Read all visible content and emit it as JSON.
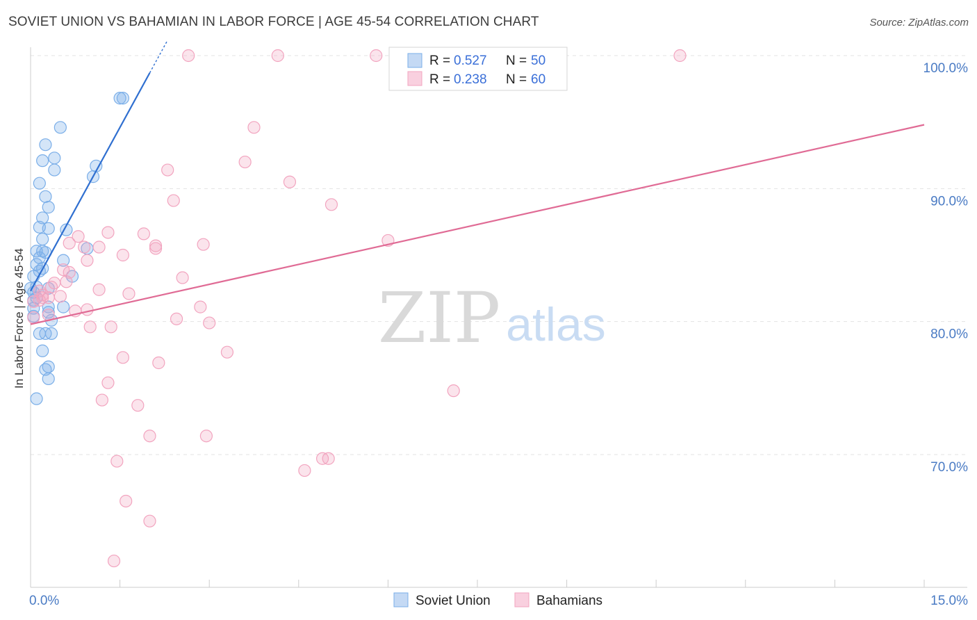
{
  "title": "SOVIET UNION VS BAHAMIAN IN LABOR FORCE | AGE 45-54 CORRELATION CHART",
  "source": "Source: ZipAtlas.com",
  "watermark": {
    "zip": "ZIP",
    "atlas": "atlas"
  },
  "colors": {
    "blue": "#7aaee8",
    "blue_line": "#2f6fd0",
    "pink": "#f2a4bf",
    "pink_line": "#e06b95",
    "tick": "#4a7bc4"
  },
  "chart_data": {
    "type": "scatter",
    "ylabel": "In Labor Force | Age 45-54",
    "xlim": [
      0,
      15
    ],
    "ylim": [
      61.5,
      102
    ],
    "x_ticks_labeled": [
      {
        "value": 0,
        "label": "0.0%"
      },
      {
        "value": 15,
        "label": "15.0%"
      }
    ],
    "x_ticks_minor": [
      1.5,
      3,
      4.5,
      6,
      7.5,
      9,
      10.5,
      12,
      13.5,
      15
    ],
    "y_ticks": [
      {
        "value": 70,
        "label": "70.0%"
      },
      {
        "value": 80,
        "label": "80.0%"
      },
      {
        "value": 90,
        "label": "90.0%"
      },
      {
        "value": 100,
        "label": "100.0%"
      }
    ],
    "grid": "horizontal dashed",
    "legend_position": "top-center",
    "series": [
      {
        "name": "Soviet Union",
        "R": "0.527",
        "N": "50",
        "color": "#7aaee8",
        "trend": {
          "x0": 0.0,
          "y0": 82.3,
          "x1": 2.0,
          "y1": 98.7
        },
        "points": [
          [
            1.5,
            96.8
          ],
          [
            1.55,
            96.8
          ],
          [
            0.5,
            94.6
          ],
          [
            0.25,
            93.3
          ],
          [
            0.4,
            92.3
          ],
          [
            0.2,
            92.1
          ],
          [
            1.1,
            91.7
          ],
          [
            0.4,
            91.4
          ],
          [
            1.05,
            90.9
          ],
          [
            0.15,
            90.4
          ],
          [
            0.25,
            89.4
          ],
          [
            0.3,
            88.6
          ],
          [
            0.2,
            87.8
          ],
          [
            0.15,
            87.1
          ],
          [
            0.3,
            87.0
          ],
          [
            0.6,
            86.9
          ],
          [
            0.2,
            86.2
          ],
          [
            0.95,
            85.5
          ],
          [
            0.2,
            85.3
          ],
          [
            0.25,
            85.2
          ],
          [
            0.1,
            85.3
          ],
          [
            0.15,
            84.8
          ],
          [
            0.55,
            84.6
          ],
          [
            0.1,
            84.3
          ],
          [
            0.2,
            84.0
          ],
          [
            0.15,
            83.8
          ],
          [
            0.05,
            83.4
          ],
          [
            0.7,
            83.4
          ],
          [
            0.1,
            82.6
          ],
          [
            0.0,
            82.5
          ],
          [
            0.3,
            82.5
          ],
          [
            0.05,
            82.2
          ],
          [
            0.1,
            81.8
          ],
          [
            0.05,
            81.6
          ],
          [
            0.55,
            81.1
          ],
          [
            0.3,
            81.1
          ],
          [
            0.05,
            81.0
          ],
          [
            0.3,
            80.7
          ],
          [
            0.05,
            80.4
          ],
          [
            0.35,
            80.1
          ],
          [
            0.15,
            79.1
          ],
          [
            0.25,
            79.1
          ],
          [
            0.35,
            79.1
          ],
          [
            0.2,
            77.8
          ],
          [
            0.3,
            76.6
          ],
          [
            0.25,
            76.4
          ],
          [
            0.3,
            75.7
          ],
          [
            0.1,
            74.2
          ]
        ]
      },
      {
        "name": "Bahamians",
        "R": "0.238",
        "N": "60",
        "color": "#f2a4bf",
        "trend": {
          "x0": 0.0,
          "y0": 79.8,
          "x1": 15.0,
          "y1": 94.8
        },
        "points": [
          [
            2.65,
            100.0
          ],
          [
            4.15,
            100.0
          ],
          [
            5.8,
            100.0
          ],
          [
            10.9,
            100.0
          ],
          [
            3.75,
            94.6
          ],
          [
            3.6,
            92.0
          ],
          [
            2.3,
            91.4
          ],
          [
            4.35,
            90.5
          ],
          [
            5.05,
            88.8
          ],
          [
            2.4,
            89.1
          ],
          [
            1.3,
            86.7
          ],
          [
            1.9,
            86.6
          ],
          [
            0.8,
            86.4
          ],
          [
            6.0,
            86.1
          ],
          [
            0.65,
            85.9
          ],
          [
            2.9,
            85.8
          ],
          [
            1.15,
            85.6
          ],
          [
            2.1,
            85.7
          ],
          [
            2.1,
            85.5
          ],
          [
            0.9,
            85.6
          ],
          [
            1.55,
            85.0
          ],
          [
            0.95,
            84.6
          ],
          [
            0.55,
            83.9
          ],
          [
            0.65,
            83.7
          ],
          [
            2.55,
            83.3
          ],
          [
            0.6,
            83.0
          ],
          [
            0.4,
            82.9
          ],
          [
            0.35,
            82.6
          ],
          [
            1.15,
            82.4
          ],
          [
            0.15,
            82.3
          ],
          [
            0.2,
            82.0
          ],
          [
            1.65,
            82.1
          ],
          [
            0.5,
            81.9
          ],
          [
            0.3,
            81.8
          ],
          [
            0.2,
            81.8
          ],
          [
            0.05,
            81.5
          ],
          [
            0.15,
            81.6
          ],
          [
            0.95,
            80.9
          ],
          [
            0.75,
            80.8
          ],
          [
            2.85,
            81.1
          ],
          [
            0.3,
            80.5
          ],
          [
            2.45,
            80.2
          ],
          [
            0.05,
            80.3
          ],
          [
            3.0,
            79.9
          ],
          [
            1.35,
            79.6
          ],
          [
            1.0,
            79.6
          ],
          [
            3.3,
            77.7
          ],
          [
            1.55,
            77.3
          ],
          [
            2.15,
            76.9
          ],
          [
            1.3,
            75.4
          ],
          [
            7.1,
            74.8
          ],
          [
            1.2,
            74.1
          ],
          [
            1.8,
            73.7
          ],
          [
            2.0,
            71.4
          ],
          [
            2.95,
            71.4
          ],
          [
            4.9,
            69.7
          ],
          [
            5.0,
            69.7
          ],
          [
            1.45,
            69.5
          ],
          [
            4.6,
            68.8
          ],
          [
            1.6,
            66.5
          ],
          [
            2.0,
            65.0
          ],
          [
            1.4,
            62.0
          ]
        ]
      }
    ]
  }
}
